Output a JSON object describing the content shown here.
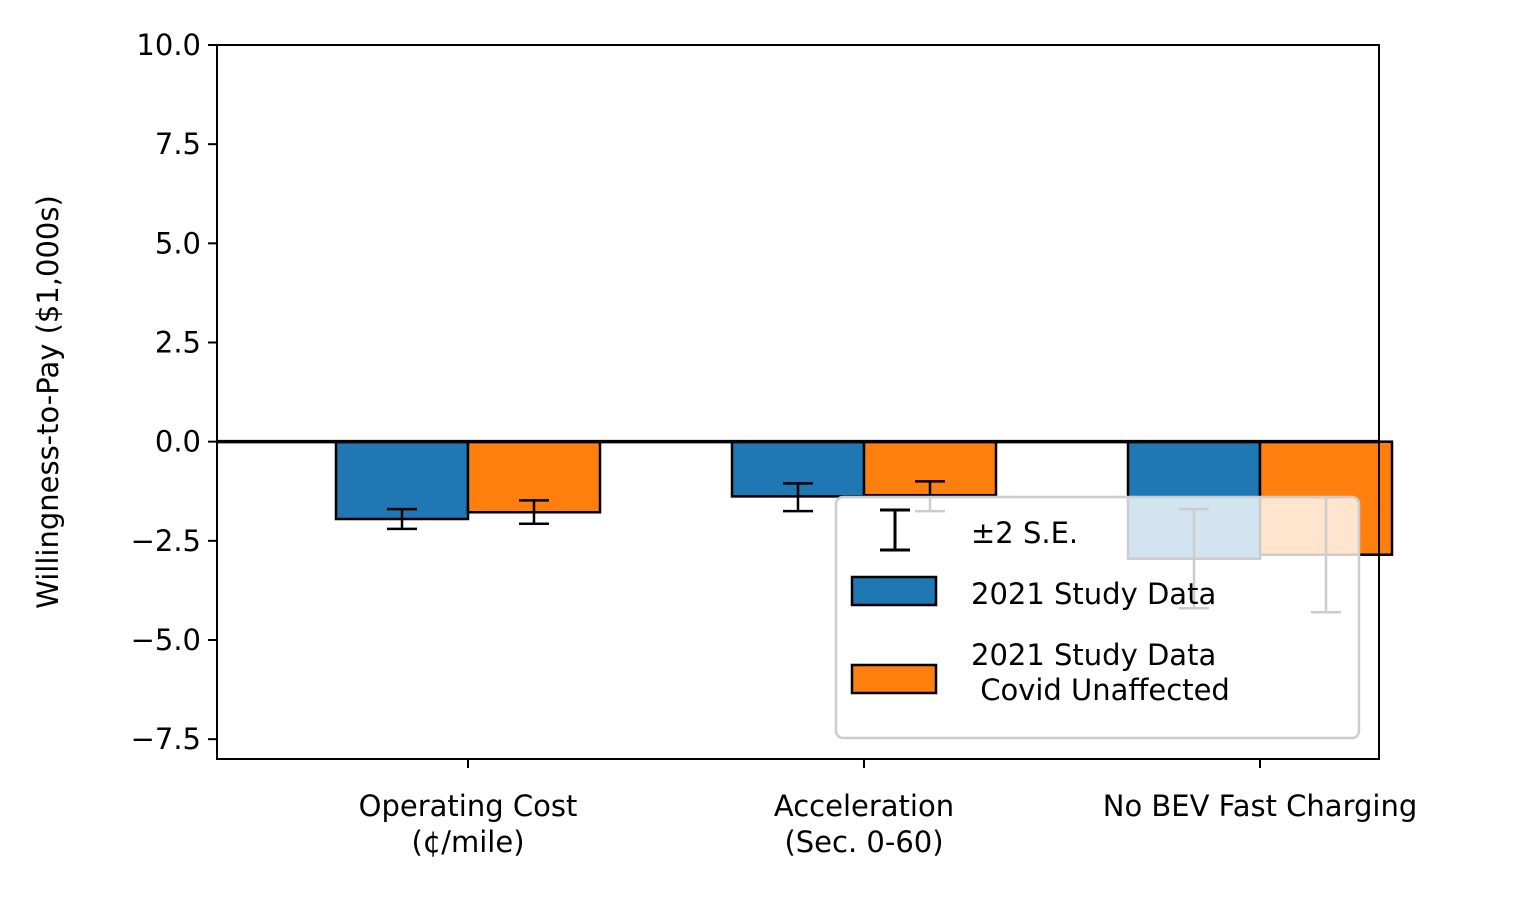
{
  "chart_data": {
    "type": "bar",
    "title": "",
    "xlabel": "",
    "ylabel": "Willingness-to-Pay ($1,000s)",
    "ylim": [
      -8,
      10
    ],
    "yticks": [
      10.0,
      7.5,
      5.0,
      2.5,
      0.0,
      -2.5,
      -5.0,
      -7.5
    ],
    "ytick_labels": [
      "10.0",
      "7.5",
      "5.0",
      "2.5",
      "0.0",
      "−2.5",
      "−5.0",
      "−7.5"
    ],
    "categories": [
      [
        "Operating Cost",
        "(¢/mile)"
      ],
      [
        "Acceleration",
        "(Sec. 0-60)"
      ],
      [
        "No BEV Fast Charging"
      ]
    ],
    "series": [
      {
        "name": "2021 Study Data",
        "color": "#1f77b4",
        "values": [
          -1.95,
          -1.38,
          -2.95
        ],
        "err_low": [
          -2.2,
          -1.75,
          -4.2
        ],
        "err_high": [
          -1.7,
          -1.05,
          -1.7
        ]
      },
      {
        "name": "2021 Study Data\n Covid Unaffected",
        "color": "#ff7f0e",
        "values": [
          -1.78,
          -1.35,
          -2.85
        ],
        "err_low": [
          -2.07,
          -1.75,
          -4.3
        ],
        "err_high": [
          -1.48,
          -1.0,
          -1.4
        ]
      }
    ],
    "legend": {
      "placement": "lower-right",
      "entries": [
        "±2 S.E.",
        "2021 Study Data",
        "2021 Study Data\n Covid Unaffected"
      ]
    },
    "grid": false
  }
}
